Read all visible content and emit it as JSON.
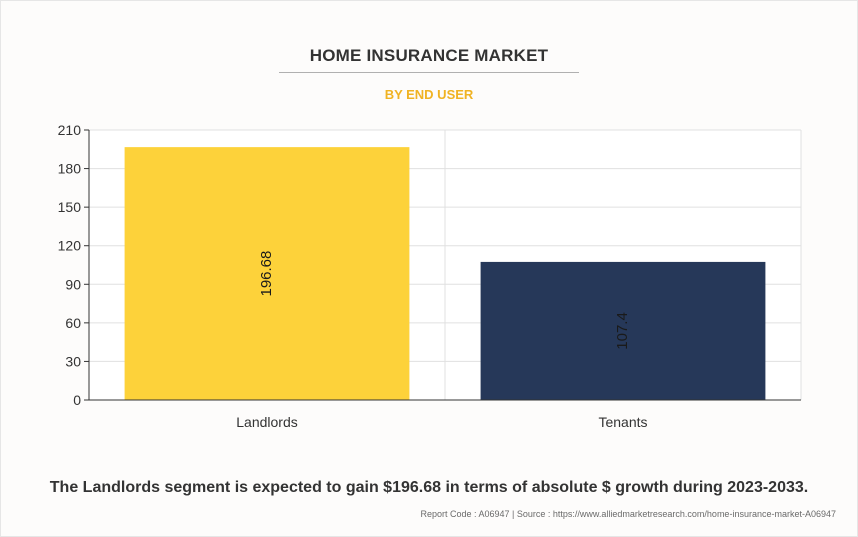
{
  "chart_data": {
    "type": "bar",
    "title": "HOME INSURANCE MARKET",
    "subtitle": "BY END USER",
    "categories": [
      "Landlords",
      "Tenants"
    ],
    "values": [
      196.68,
      107.4
    ],
    "data_labels": [
      "196.68",
      "107.4"
    ],
    "colors": [
      "#fdd23a",
      "#263859"
    ],
    "ylim": [
      0,
      210
    ],
    "yticks": [
      0,
      30,
      60,
      90,
      120,
      150,
      180,
      210
    ],
    "xlabel": "",
    "ylabel": "",
    "grid": true,
    "legend": "none"
  },
  "footnote": "The Landlords segment is expected to gain $196.68 in terms of absolute $ growth during 2023-2033.",
  "source": "Report Code : A06947  |  Source : https://www.alliedmarketresearch.com/home-insurance-market-A06947",
  "colors": {
    "title": "#333333",
    "subtitle": "#f0b323",
    "grid": "#e0e0e0",
    "axis": "#333333"
  }
}
